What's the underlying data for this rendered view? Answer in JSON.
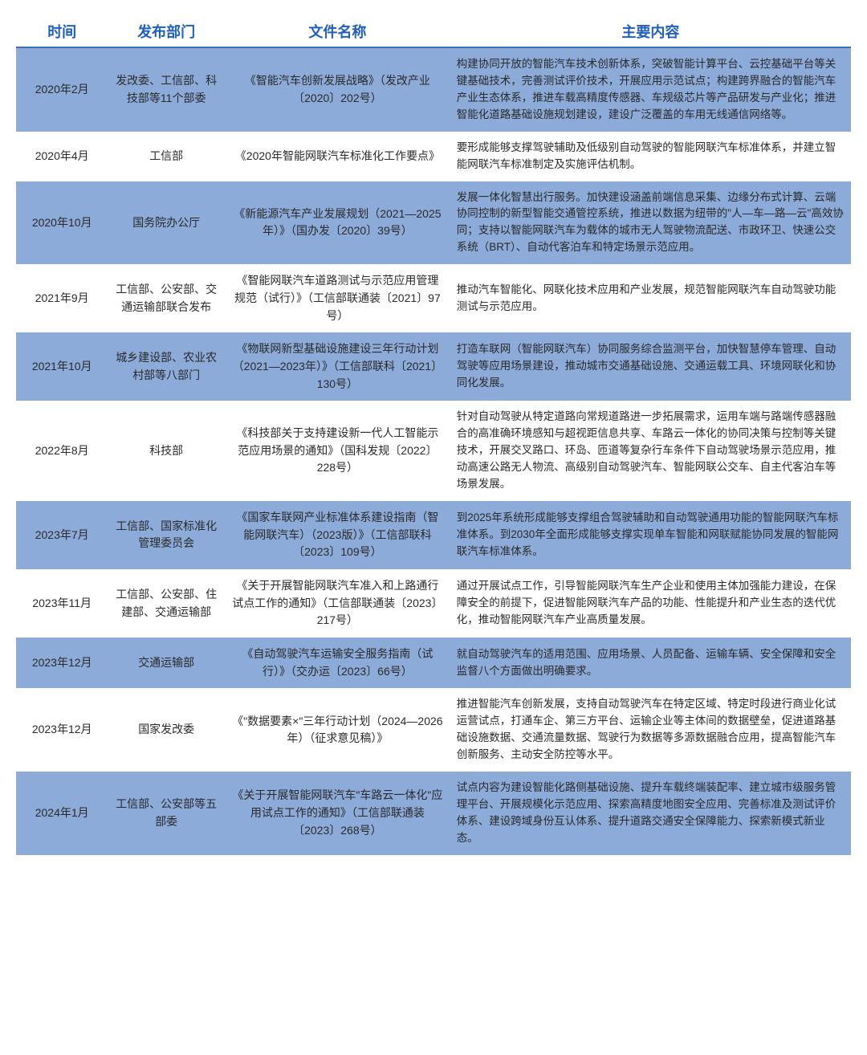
{
  "table": {
    "headers": {
      "time": "时间",
      "dept": "发布部门",
      "doc": "文件名称",
      "body": "主要内容"
    },
    "header_color": "#1e5fbf",
    "header_fontsize": 18,
    "shaded_bg": "#8cabd9",
    "plain_bg": "#ffffff",
    "col_widths_pct": [
      11,
      14,
      27,
      48
    ],
    "body_fontsize": 13.5,
    "rows": [
      {
        "shaded": true,
        "time": "2020年2月",
        "dept": "发改委、工信部、科技部等11个部委",
        "doc": "《智能汽车创新发展战略》（发改产业〔2020〕202号）",
        "body": "构建协同开放的智能汽车技术创新体系，突破智能计算平台、云控基础平台等关键基础技术，完善测试评价技术，开展应用示范试点；构建跨界融合的智能汽车产业生态体系，推进车载高精度传感器、车规级芯片等产品研发与产业化；推进智能化道路基础设施规划建设，建设广泛覆盖的车用无线通信网络等。"
      },
      {
        "shaded": false,
        "time": "2020年4月",
        "dept": "工信部",
        "doc": "《2020年智能网联汽车标准化工作要点》",
        "body": "要形成能够支撑驾驶辅助及低级别自动驾驶的智能网联汽车标准体系，并建立智能网联汽车标准制定及实施评估机制。"
      },
      {
        "shaded": true,
        "time": "2020年10月",
        "dept": "国务院办公厅",
        "doc": "《新能源汽车产业发展规划（2021—2025年）》（国办发〔2020〕39号）",
        "body": "发展一体化智慧出行服务。加快建设涵盖前端信息采集、边缘分布式计算、云端协同控制的新型智能交通管控系统，推进以数据为纽带的\"人—车—路—云\"高效协同；支持以智能网联汽车为载体的城市无人驾驶物流配送、市政环卫、快速公交系统（BRT）、自动代客泊车和特定场景示范应用。"
      },
      {
        "shaded": false,
        "time": "2021年9月",
        "dept": "工信部、公安部、交通运输部联合发布",
        "doc": "《智能网联汽车道路测试与示范应用管理规范（试行）》（工信部联通装〔2021〕97号）",
        "body": "推动汽车智能化、网联化技术应用和产业发展，规范智能网联汽车自动驾驶功能测试与示范应用。"
      },
      {
        "shaded": true,
        "time": "2021年10月",
        "dept": "城乡建设部、农业农村部等八部门",
        "doc": "《物联网新型基础设施建设三年行动计划（2021—2023年）》（工信部联科〔2021〕130号）",
        "body": "打造车联网（智能网联汽车）协同服务综合监测平台，加快智慧停车管理、自动驾驶等应用场景建设，推动城市交通基础设施、交通运载工具、环境网联化和协同化发展。"
      },
      {
        "shaded": false,
        "time": "2022年8月",
        "dept": "科技部",
        "doc": "《科技部关于支持建设新一代人工智能示范应用场景的通知》（国科发规〔2022〕228号）",
        "body": "针对自动驾驶从特定道路向常规道路进一步拓展需求，运用车端与路端传感器融合的高准确环境感知与超视距信息共享、车路云一体化的协同决策与控制等关键技术，开展交叉路口、环岛、匝道等复杂行车条件下自动驾驶场景示范应用，推动高速公路无人物流、高级别自动驾驶汽车、智能网联公交车、自主代客泊车等场景发展。"
      },
      {
        "shaded": true,
        "time": "2023年7月",
        "dept": "工信部、国家标准化管理委员会",
        "doc": "《国家车联网产业标准体系建设指南（智能网联汽车）（2023版）》（工信部联科〔2023〕109号）",
        "body": "到2025年系统形成能够支撑组合驾驶辅助和自动驾驶通用功能的智能网联汽车标准体系。到2030年全面形成能够支撑实现单车智能和网联赋能协同发展的智能网联汽车标准体系。"
      },
      {
        "shaded": false,
        "time": "2023年11月",
        "dept": "工信部、公安部、住建部、交通运输部",
        "doc": "《关于开展智能网联汽车准入和上路通行试点工作的通知》（工信部联通装〔2023〕217号）",
        "body": "通过开展试点工作，引导智能网联汽车生产企业和使用主体加强能力建设，在保障安全的前提下，促进智能网联汽车产品的功能、性能提升和产业生态的迭代优化，推动智能网联汽车产业高质量发展。"
      },
      {
        "shaded": true,
        "time": "2023年12月",
        "dept": "交通运输部",
        "doc": "《自动驾驶汽车运输安全服务指南（试行）》（交办运〔2023〕66号）",
        "body": "就自动驾驶汽车的适用范围、应用场景、人员配备、运输车辆、安全保障和安全监督八个方面做出明确要求。"
      },
      {
        "shaded": false,
        "time": "2023年12月",
        "dept": "国家发改委",
        "doc": "《\"数据要素×\"三年行动计划（2024—2026年）（征求意见稿）》",
        "body": "推进智能汽车创新发展，支持自动驾驶汽车在特定区域、特定时段进行商业化试运营试点，打通车企、第三方平台、运输企业等主体间的数据壁垒，促进道路基础设施数据、交通流量数据、驾驶行为数据等多源数据融合应用，提高智能汽车创新服务、主动安全防控等水平。"
      },
      {
        "shaded": true,
        "time": "2024年1月",
        "dept": "工信部、公安部等五部委",
        "doc": "《关于开展智能网联汽车\"车路云一体化\"应用试点工作的通知》（工信部联通装〔2023〕268号）",
        "body": "试点内容为建设智能化路侧基础设施、提升车载终端装配率、建立城市级服务管理平台、开展规模化示范应用、探索高精度地图安全应用、完善标准及测试评价体系、建设跨域身份互认体系、提升道路交通安全保障能力、探索新模式新业态。"
      }
    ]
  }
}
